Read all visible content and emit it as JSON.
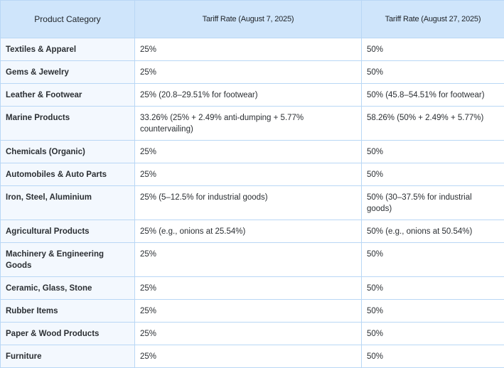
{
  "table": {
    "headers": [
      "Product Category",
      "Tariff Rate (August 7, 2025)",
      "Tariff Rate (August 27, 2025)"
    ],
    "rows": [
      {
        "category": "Textiles & Apparel",
        "aug7": "25%",
        "aug27": "50%"
      },
      {
        "category": "Gems & Jewelry",
        "aug7": "25%",
        "aug27": "50%"
      },
      {
        "category": "Leather & Footwear",
        "aug7": "25% (20.8–29.51% for footwear)",
        "aug27": "50% (45.8–54.51% for footwear)"
      },
      {
        "category": "Marine Products",
        "aug7": "33.26% (25% + 2.49% anti-dumping + 5.77% countervailing)",
        "aug27": "58.26% (50% + 2.49% + 5.77%)"
      },
      {
        "category": "Chemicals (Organic)",
        "aug7": "25%",
        "aug27": "50%"
      },
      {
        "category": "Automobiles & Auto Parts",
        "aug7": "25%",
        "aug27": "50%"
      },
      {
        "category": "Iron, Steel, Aluminium",
        "aug7": "25% (5–12.5% for industrial goods)",
        "aug27": "50% (30–37.5% for industrial goods)"
      },
      {
        "category": "Agricultural Products",
        "aug7": "25% (e.g., onions at 25.54%)",
        "aug27": "50% (e.g., onions at 50.54%)"
      },
      {
        "category": "Machinery & Engineering Goods",
        "aug7": "25%",
        "aug27": "50%"
      },
      {
        "category": "Ceramic, Glass, Stone",
        "aug7": "25%",
        "aug27": "50%"
      },
      {
        "category": "Rubber Items",
        "aug7": "25%",
        "aug27": "50%"
      },
      {
        "category": "Paper & Wood Products",
        "aug7": "25%",
        "aug27": "50%"
      },
      {
        "category": "Furniture",
        "aug7": "25%",
        "aug27": "50%"
      }
    ]
  }
}
